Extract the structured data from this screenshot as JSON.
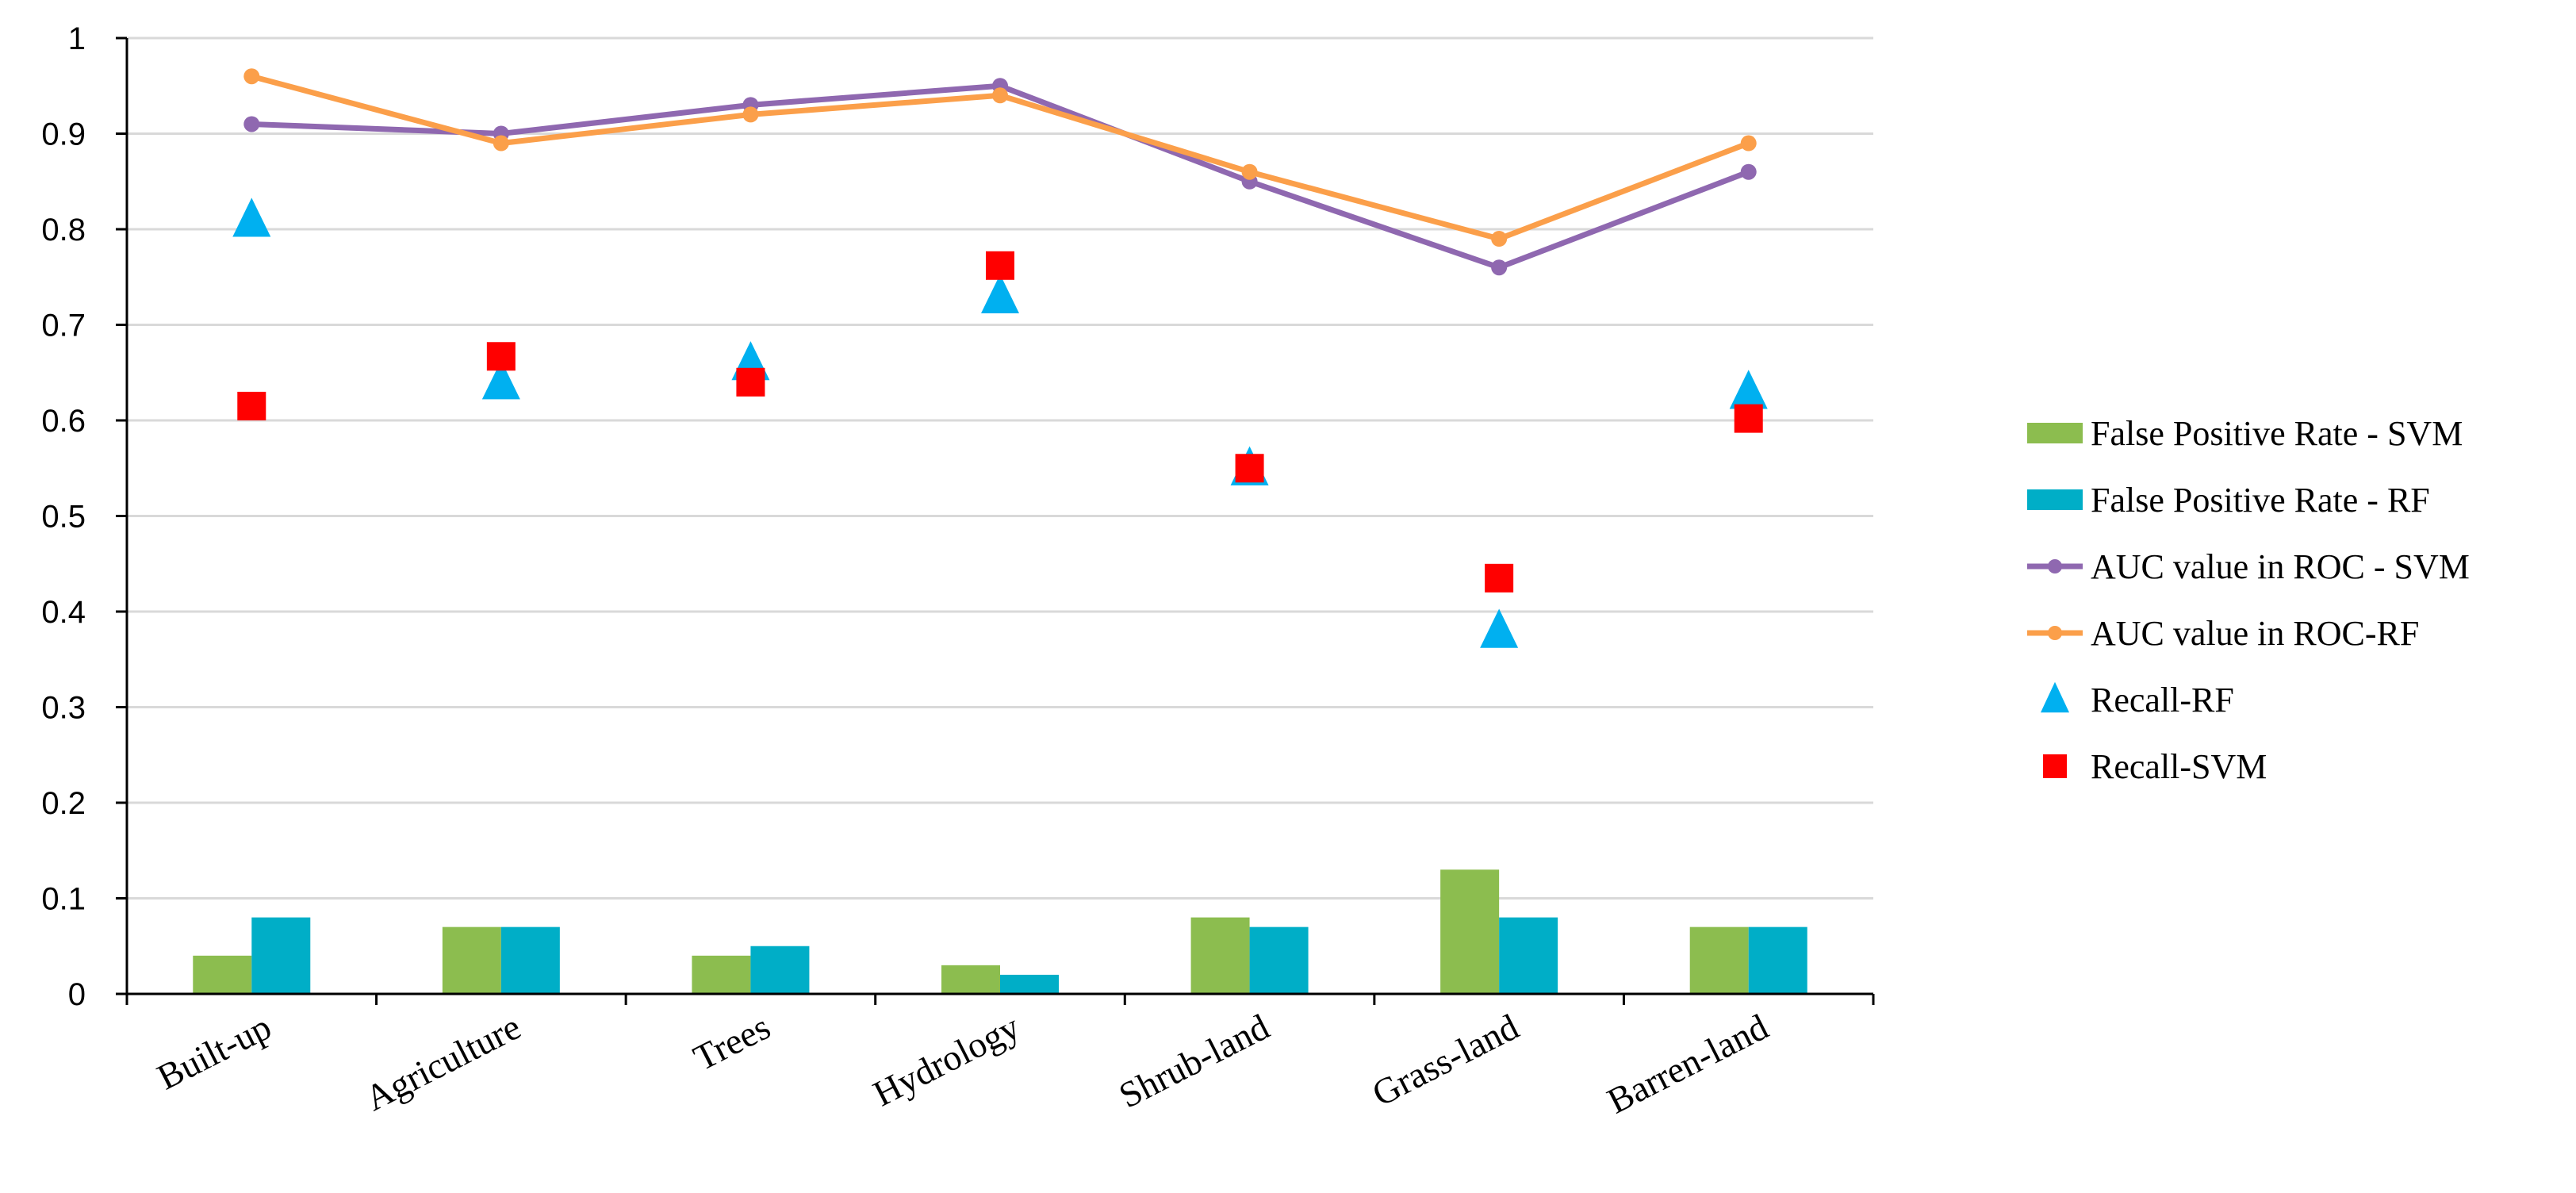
{
  "chart_data": {
    "type": "bar",
    "title": "",
    "xlabel": "",
    "ylabel": "",
    "ylim": [
      0,
      1
    ],
    "yticks": [
      "0",
      "0.1",
      "0.2",
      "0.3",
      "0.4",
      "0.5",
      "0.6",
      "0.7",
      "0.8",
      "0.9",
      "1"
    ],
    "grid": true,
    "legend_position": "right",
    "categories": [
      "Built-up",
      "Agriculture",
      "Trees",
      "Hydrology",
      "Shrub-land",
      "Grass-land",
      "Barren-land"
    ],
    "series": [
      {
        "name": "False Positive Rate - SVM",
        "kind": "bar",
        "color": "#8cbd4f",
        "values": [
          0.04,
          0.07,
          0.04,
          0.03,
          0.08,
          0.13,
          0.07
        ]
      },
      {
        "name": "False Positive Rate - RF",
        "kind": "bar",
        "color": "#00aec7",
        "values": [
          0.08,
          0.07,
          0.05,
          0.02,
          0.07,
          0.08,
          0.07
        ]
      },
      {
        "name": "AUC value in ROC - SVM",
        "kind": "line",
        "color": "#8f68b0",
        "values": [
          0.91,
          0.9,
          0.93,
          0.95,
          0.85,
          0.76,
          0.86
        ]
      },
      {
        "name": "AUC value in ROC-RF",
        "kind": "line",
        "color": "#fb9f4a",
        "values": [
          0.96,
          0.89,
          0.92,
          0.94,
          0.86,
          0.79,
          0.89
        ]
      },
      {
        "name": "Recall-RF",
        "kind": "triangle",
        "color": "#00b0f0",
        "values": [
          0.81,
          0.64,
          0.66,
          0.73,
          0.55,
          0.38,
          0.63
        ]
      },
      {
        "name": "Recall-SVM",
        "kind": "square",
        "color": "#ff0000",
        "values": [
          0.615,
          0.667,
          0.64,
          0.762,
          0.55,
          0.435,
          0.602
        ]
      }
    ]
  }
}
